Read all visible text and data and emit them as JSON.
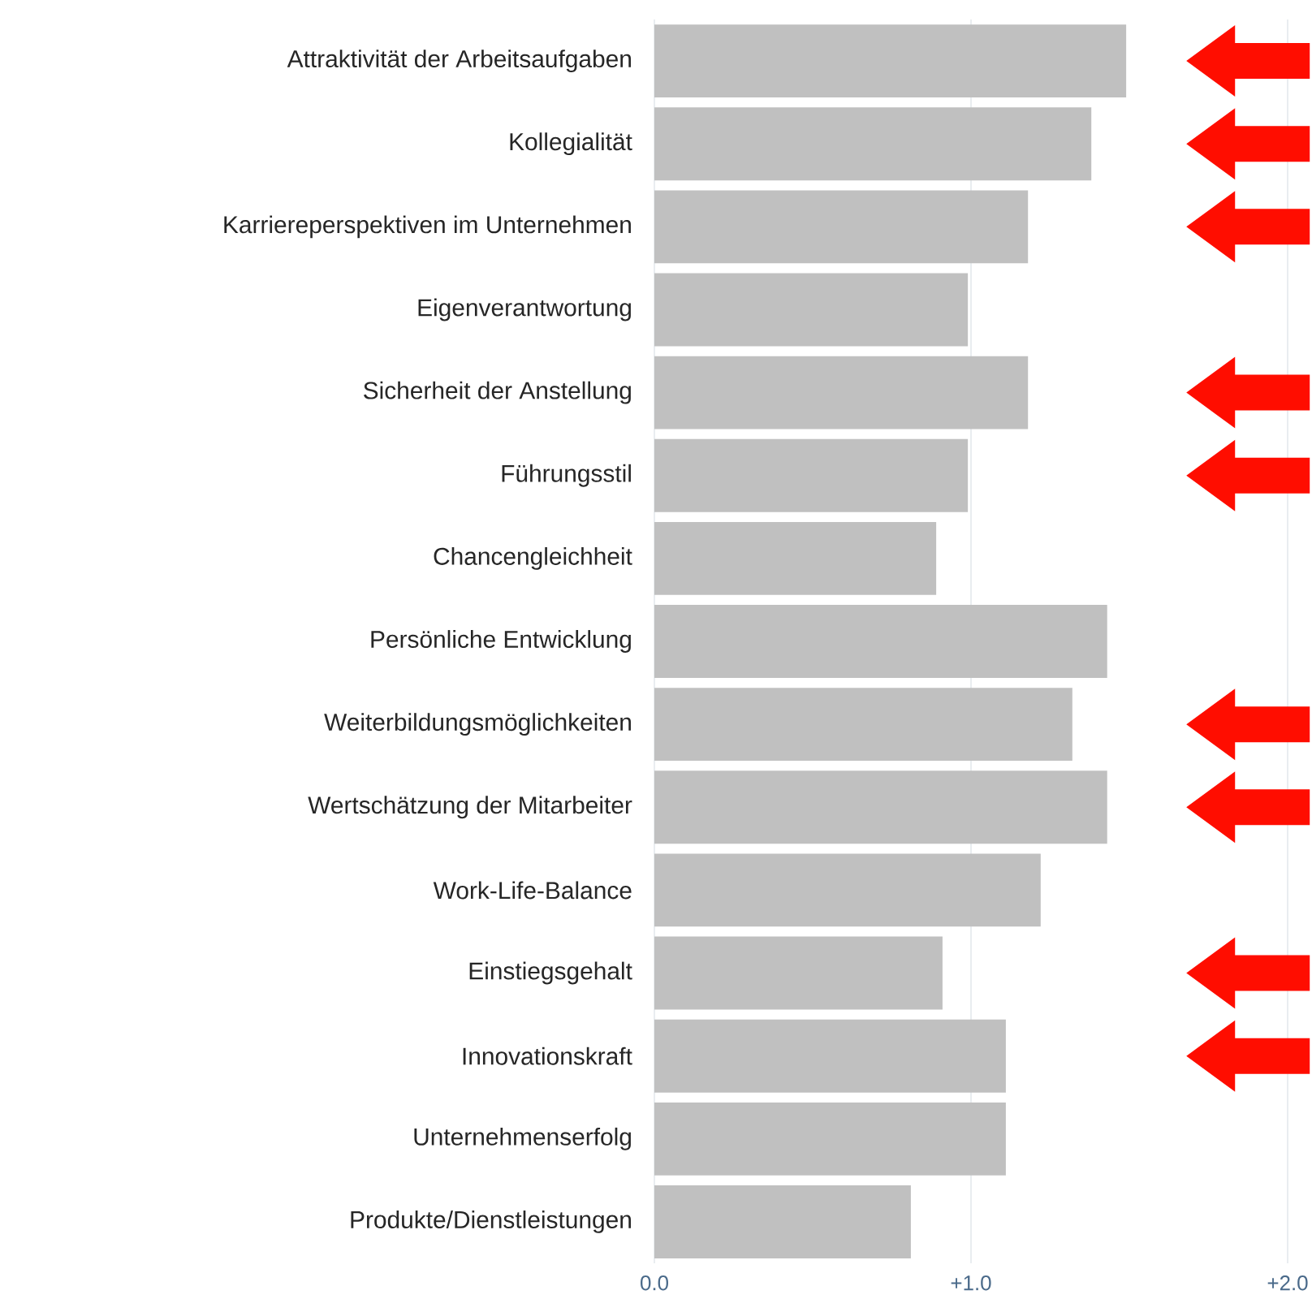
{
  "chart_data": {
    "type": "bar",
    "orientation": "horizontal",
    "categories": [
      "Attraktivität der Arbeitsaufgaben",
      "Kollegialität",
      "Karriereperspektiven im Unternehmen",
      "Eigenverantwortung",
      "Sicherheit der Anstellung",
      "Führungsstil",
      "Chancengleichheit",
      "Persönliche Entwicklung",
      "Weiterbildungsmöglichkeiten",
      "Wertschätzung der Mitarbeiter",
      "Work-Life-Balance",
      "Einstiegsgehalt",
      "Innovationskraft",
      "Unternehmenserfolg",
      "Produkte/Dienstleistungen"
    ],
    "values": [
      1.49,
      1.38,
      1.18,
      0.99,
      1.18,
      0.99,
      0.89,
      1.43,
      1.32,
      1.43,
      1.22,
      0.91,
      1.11,
      1.11,
      0.81
    ],
    "color": "#c0c0c0",
    "xlim": [
      0,
      2
    ],
    "xticks": [
      {
        "value": 0,
        "label": "0.0"
      },
      {
        "value": 1,
        "label": "+1.0"
      },
      {
        "value": 2,
        "label": "+2.0"
      }
    ],
    "grid": "x"
  }
}
